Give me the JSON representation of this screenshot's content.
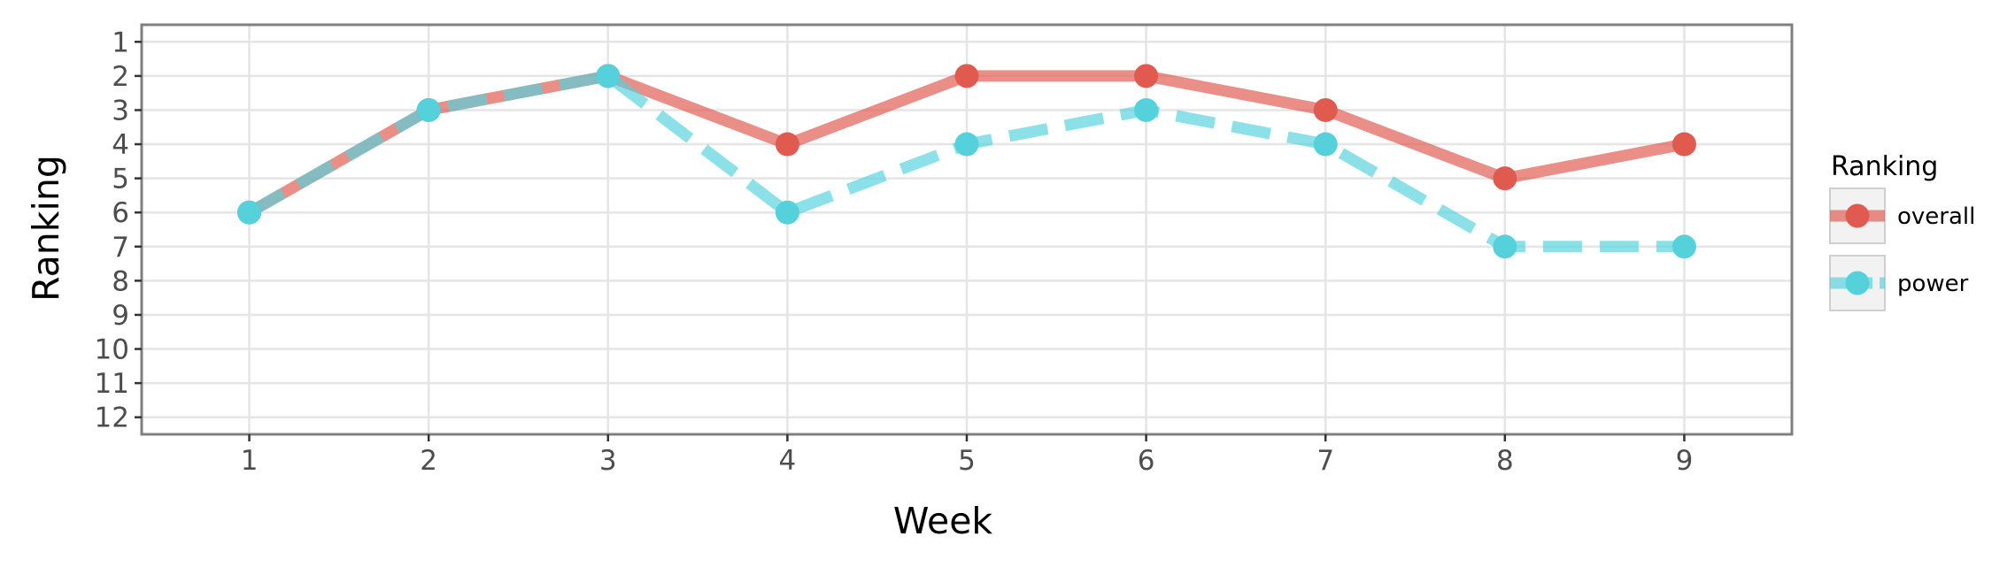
{
  "chart_data": {
    "type": "line",
    "title": "",
    "xlabel": "Week",
    "ylabel": "Ranking",
    "x": [
      1,
      2,
      3,
      4,
      5,
      6,
      7,
      8,
      9
    ],
    "x_tick_labels": [
      "1",
      "2",
      "3",
      "4",
      "5",
      "6",
      "7",
      "8",
      "9"
    ],
    "y_tick_labels": [
      "1",
      "2",
      "3",
      "4",
      "5",
      "6",
      "7",
      "8",
      "9",
      "10",
      "11",
      "12"
    ],
    "xlim": [
      0.4,
      9.6
    ],
    "ylim": [
      12.5,
      0.5
    ],
    "y_reversed": true,
    "grid": true,
    "legend": {
      "title": "Ranking",
      "placement": "right"
    },
    "series": [
      {
        "name": "overall",
        "values": [
          6,
          3,
          2,
          4,
          2,
          2,
          3,
          5,
          4
        ],
        "color": "#e05a4f",
        "line_style": "solid"
      },
      {
        "name": "power",
        "values": [
          6,
          3,
          2,
          6,
          4,
          3,
          4,
          7,
          7
        ],
        "color": "#55d1db",
        "line_style": "dashed"
      }
    ]
  }
}
